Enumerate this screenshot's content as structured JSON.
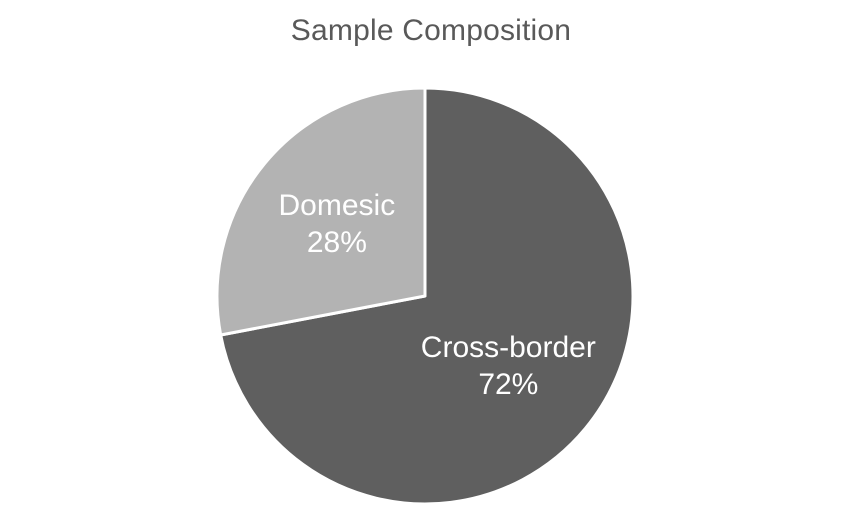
{
  "chart_data": {
    "type": "pie",
    "title": "Sample Composition",
    "slices": [
      {
        "label": "Cross-border",
        "value": 72,
        "value_label": "72%",
        "color": "#5f5f5f"
      },
      {
        "label": "Domesic",
        "value": 28,
        "value_label": "28%",
        "color": "#b3b3b3"
      }
    ],
    "start_angle_deg": 0,
    "direction": "clockwise",
    "border_color": "#ffffff",
    "legend": "none"
  }
}
